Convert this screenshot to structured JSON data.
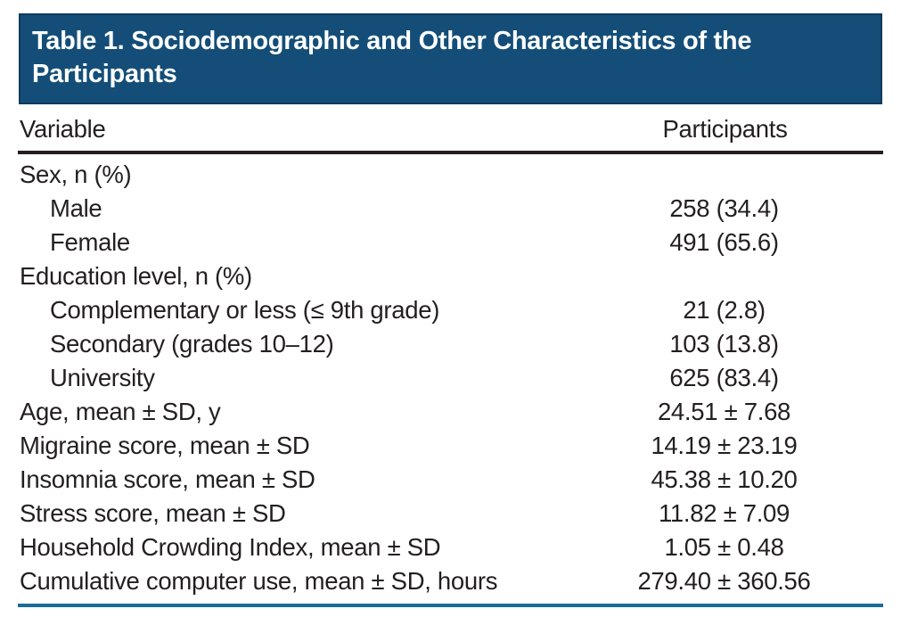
{
  "table": {
    "title": "Table 1. Sociodemographic and Other Characteristics of the Participants",
    "columns": [
      "Variable",
      "Participants"
    ],
    "rows": [
      {
        "label": "Sex, n (%)",
        "value": ""
      },
      {
        "label": "Male",
        "value": "258 (34.4)"
      },
      {
        "label": "Female",
        "value": "491 (65.6)"
      },
      {
        "label": "Education level, n (%)",
        "value": ""
      },
      {
        "label": "Complementary or less (≤ 9th grade)",
        "value": "21 (2.8)"
      },
      {
        "label": "Secondary (grades 10–12)",
        "value": "103 (13.8)"
      },
      {
        "label": "University",
        "value": "625 (83.4)"
      },
      {
        "label": "Age, mean ± SD, y",
        "value": "24.51 ± 7.68"
      },
      {
        "label": "Migraine score, mean ± SD",
        "value": "14.19 ± 23.19"
      },
      {
        "label": "Insomnia score, mean ± SD",
        "value": "45.38 ± 10.20"
      },
      {
        "label": "Stress score, mean ± SD",
        "value": "11.82 ± 7.09"
      },
      {
        "label": "Household Crowding Index, mean ± SD",
        "value": "1.05 ± 0.48"
      },
      {
        "label": "Cumulative computer use, mean ± SD, hours",
        "value": "279.40 ± 360.56"
      }
    ],
    "colors": {
      "banner_background": "#144e78",
      "banner_border": "#0d3a5c",
      "banner_text": "#ffffff",
      "header_rule": "#231f20",
      "bottom_rule": "#1c6c96",
      "body_text": "#231f20"
    }
  }
}
